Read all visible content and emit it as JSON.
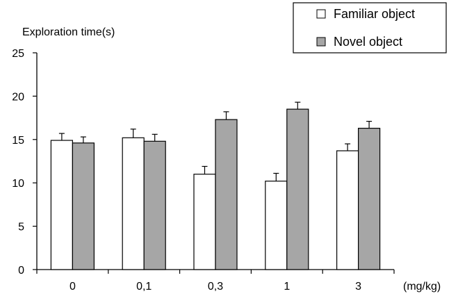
{
  "chart_data": {
    "type": "bar",
    "ylabel": "Exploration time(s)",
    "xunit": "(mg/kg)",
    "categories": [
      "0",
      "0,1",
      "0,3",
      "1",
      "3"
    ],
    "ylim": [
      0,
      25
    ],
    "yticks": [
      "0",
      "5",
      "10",
      "15",
      "20",
      "25"
    ],
    "grid": false,
    "legend_position": "top-right",
    "series": [
      {
        "name": "Familiar object",
        "color": "#ffffff",
        "values": [
          14.9,
          15.2,
          11.0,
          10.2,
          13.7
        ],
        "errors": [
          0.8,
          1.0,
          0.9,
          0.9,
          0.8
        ]
      },
      {
        "name": "Novel object",
        "color": "#a6a6a6",
        "values": [
          14.6,
          14.8,
          17.3,
          18.5,
          16.3
        ],
        "errors": [
          0.7,
          0.8,
          0.9,
          0.8,
          0.8
        ]
      }
    ]
  }
}
